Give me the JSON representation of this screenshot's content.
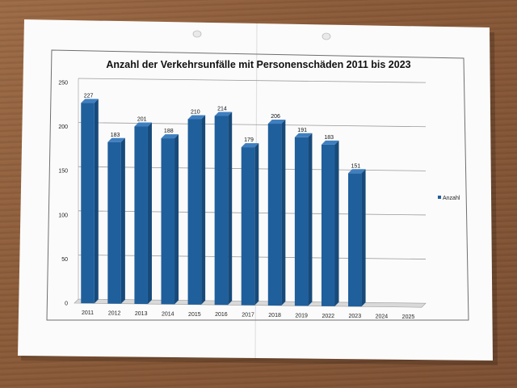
{
  "chart_data": {
    "type": "bar",
    "title": "Anzahl der Verkehrsunfälle mit Personenschäden 2011 bis 2023",
    "categories": [
      "2011",
      "2012",
      "2013",
      "2014",
      "2015",
      "2016",
      "2017",
      "2018",
      "2019",
      "2022",
      "2023",
      "2024",
      "2025"
    ],
    "series": [
      {
        "name": "Anzahl",
        "values": [
          227,
          183,
          201,
          188,
          210,
          214,
          179,
          206,
          191,
          183,
          151,
          null,
          null
        ]
      }
    ],
    "ylim": [
      0,
      250
    ],
    "yticks": [
      0,
      50,
      100,
      150,
      200,
      250
    ],
    "grid": true,
    "legend_position": "right",
    "colors": {
      "bar": "#1f5f9c"
    }
  }
}
